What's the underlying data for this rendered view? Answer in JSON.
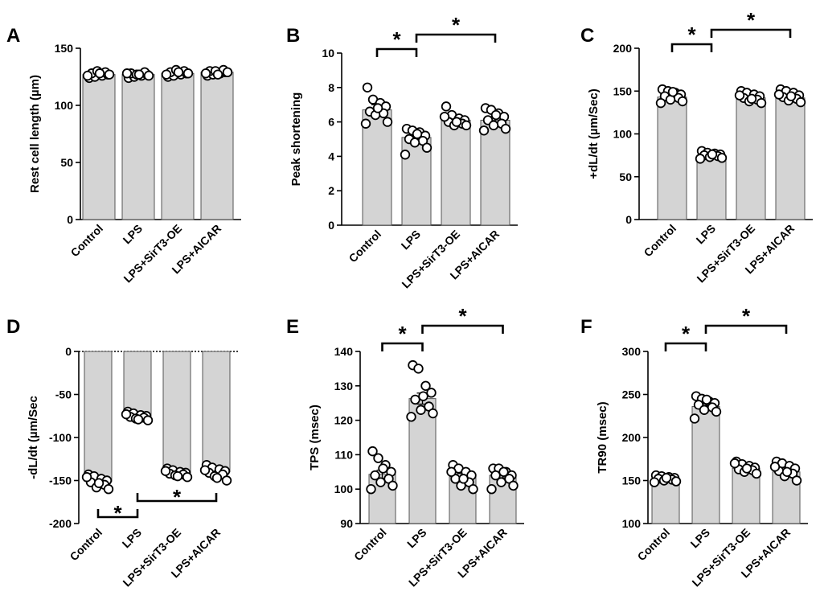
{
  "colors": {
    "bar_fill": "#d4d4d4",
    "bar_stroke": "#555555",
    "axis": "#000000",
    "point_fill": "#ffffff",
    "point_stroke": "#000000",
    "bracket": "#000000"
  },
  "chart_data": [
    {
      "panel": "A",
      "type": "bar",
      "categories": [
        "Control",
        "LPS",
        "LPS+SirT3-OE",
        "LPS+AICAR"
      ],
      "values": [
        127,
        127,
        128,
        129
      ],
      "errors": [
        1,
        1,
        1,
        1
      ],
      "points": [
        [
          124,
          125,
          126,
          127,
          128,
          129,
          130,
          127,
          126,
          128
        ],
        [
          124,
          125,
          126,
          127,
          128,
          129,
          127,
          126,
          128,
          127
        ],
        [
          125,
          126,
          127,
          128,
          129,
          130,
          131,
          128,
          127,
          129
        ],
        [
          126,
          127,
          128,
          129,
          130,
          131,
          130,
          129,
          128,
          127
        ]
      ],
      "ylabel": "Rest cell length (µm)",
      "ylim": [
        0,
        150
      ],
      "yticks": [
        0,
        50,
        100,
        150
      ],
      "brackets": []
    },
    {
      "panel": "B",
      "type": "bar",
      "categories": [
        "Control",
        "LPS",
        "LPS+SirT3-OE",
        "LPS+AICAR"
      ],
      "values": [
        6.7,
        5.1,
        6.1,
        6.1
      ],
      "errors": [
        0.3,
        0.2,
        0.1,
        0.2
      ],
      "points": [
        [
          8.0,
          7.3,
          7.1,
          6.9,
          6.6,
          6.5,
          6.4,
          6.0,
          5.9,
          6.8
        ],
        [
          5.6,
          5.5,
          5.4,
          5.2,
          5.0,
          4.9,
          4.8,
          4.5,
          4.1,
          5.3
        ],
        [
          6.9,
          6.4,
          6.2,
          6.1,
          6.0,
          5.9,
          5.8,
          5.8,
          6.3,
          6.0
        ],
        [
          6.8,
          6.7,
          6.5,
          6.3,
          6.1,
          5.9,
          5.8,
          5.6,
          5.5,
          6.4
        ]
      ],
      "ylabel": "Peak shortening",
      "ylim": [
        0,
        10
      ],
      "yticks": [
        0,
        2,
        4,
        6,
        8,
        10
      ],
      "brackets": [
        {
          "from": 0,
          "to": 1,
          "label": "*"
        },
        {
          "from": 1,
          "to": 3,
          "label": "*"
        }
      ]
    },
    {
      "panel": "C",
      "type": "bar",
      "categories": [
        "Control",
        "LPS",
        "LPS+SirT3-OE",
        "LPS+AICAR"
      ],
      "values": [
        143,
        75,
        142,
        142
      ],
      "errors": [
        2,
        1,
        2,
        2
      ],
      "points": [
        [
          152,
          150,
          148,
          146,
          144,
          142,
          140,
          138,
          136,
          149
        ],
        [
          80,
          78,
          77,
          76,
          75,
          74,
          73,
          72,
          71,
          76
        ],
        [
          150,
          148,
          146,
          144,
          142,
          140,
          138,
          136,
          145,
          141
        ],
        [
          152,
          150,
          148,
          145,
          143,
          141,
          139,
          137,
          146,
          144
        ]
      ],
      "ylabel": "+dL/dt (µm/Sec)",
      "ylim": [
        0,
        200
      ],
      "yticks": [
        0,
        50,
        100,
        150,
        200
      ],
      "brackets": [
        {
          "from": 0,
          "to": 1,
          "label": "*"
        },
        {
          "from": 1,
          "to": 3,
          "label": "*"
        }
      ]
    },
    {
      "panel": "D",
      "type": "bar",
      "categories": [
        "Control",
        "LPS",
        "LPS+SirT3-OE",
        "LPS+AICAR"
      ],
      "values": [
        -151,
        -75,
        -141,
        -140
      ],
      "errors": [
        2,
        1,
        1,
        2
      ],
      "points": [
        [
          -143,
          -145,
          -148,
          -150,
          -152,
          -155,
          -158,
          -160,
          -146,
          -153
        ],
        [
          -70,
          -72,
          -74,
          -75,
          -76,
          -77,
          -78,
          -80,
          -73,
          -79
        ],
        [
          -136,
          -138,
          -140,
          -141,
          -142,
          -143,
          -144,
          -146,
          -139,
          -145
        ],
        [
          -132,
          -135,
          -137,
          -139,
          -141,
          -143,
          -145,
          -150,
          -138,
          -147
        ]
      ],
      "ylabel": "-dL/dt (µm/Sec",
      "ylim": [
        -200,
        0
      ],
      "yticks": [
        0,
        -50,
        -100,
        -150,
        -200
      ],
      "brackets": [
        {
          "from": 0,
          "to": 1,
          "label": "*"
        },
        {
          "from": 1,
          "to": 3,
          "label": "*"
        }
      ],
      "bracket_position": "below"
    },
    {
      "panel": "E",
      "type": "bar",
      "categories": [
        "Control",
        "LPS",
        "LPS+SirT3-OE",
        "LPS+AICAR"
      ],
      "values": [
        104.3,
        126.3,
        103.6,
        104
      ],
      "errors": [
        1.2,
        1.6,
        0.9,
        0.7
      ],
      "points": [
        [
          111,
          109,
          107,
          105,
          104,
          103,
          102,
          101,
          100,
          106
        ],
        [
          136,
          135,
          130,
          128,
          126,
          124,
          123,
          122,
          121,
          127
        ],
        [
          107,
          106,
          105,
          104,
          103,
          102,
          101,
          100,
          105,
          103
        ],
        [
          106,
          106,
          105,
          104,
          104,
          103,
          102,
          101,
          100,
          105
        ]
      ],
      "ylabel": "TPS (msec)",
      "ylim": [
        90,
        140
      ],
      "yticks": [
        90,
        100,
        110,
        120,
        130,
        140
      ],
      "brackets": [
        {
          "from": 0,
          "to": 1,
          "label": "*"
        },
        {
          "from": 1,
          "to": 3,
          "label": "*"
        }
      ]
    },
    {
      "panel": "F",
      "type": "bar",
      "categories": [
        "Control",
        "LPS",
        "LPS+SirT3-OE",
        "LPS+AICAR"
      ],
      "values": [
        152,
        236,
        164,
        160
      ],
      "errors": [
        1,
        3,
        2,
        3
      ],
      "points": [
        [
          156,
          155,
          154,
          153,
          152,
          151,
          150,
          149,
          148,
          153
        ],
        [
          248,
          245,
          242,
          240,
          238,
          235,
          232,
          230,
          222,
          244
        ],
        [
          172,
          169,
          167,
          165,
          163,
          162,
          160,
          158,
          170,
          164
        ],
        [
          172,
          170,
          167,
          164,
          161,
          158,
          155,
          150,
          166,
          160
        ]
      ],
      "ylabel": "TR90 (msec)",
      "ylim": [
        100,
        300
      ],
      "yticks": [
        100,
        150,
        200,
        250,
        300
      ],
      "brackets": [
        {
          "from": 0,
          "to": 1,
          "label": "*"
        },
        {
          "from": 1,
          "to": 3,
          "label": "*"
        }
      ]
    }
  ]
}
